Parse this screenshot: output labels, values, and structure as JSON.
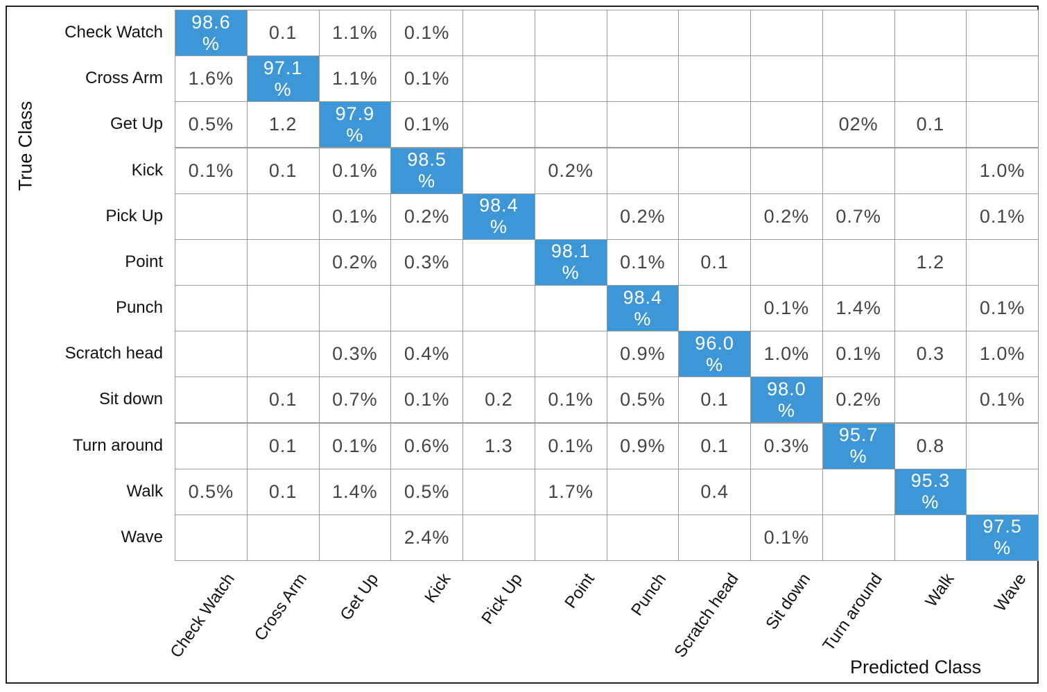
{
  "matrix": {
    "y_label": "True Class",
    "x_label": "Predicted Class",
    "highlight_color": "#3d97d6",
    "rows": [
      "Check Watch",
      "Cross Arm",
      "Get Up",
      "Kick",
      "Pick Up",
      "Point",
      "Punch",
      "Scratch head",
      "Sit down",
      "Turn around",
      "Walk",
      "Wave"
    ],
    "columns": [
      "Check Watch",
      "Cross Arm",
      "Get Up",
      "Kick",
      "Pick Up",
      "Point",
      "Punch",
      "Scratch head",
      "Sit down",
      "Turn around",
      "Walk",
      "Wave"
    ],
    "cells": [
      [
        "98.6 %",
        "0.1",
        "1.1%",
        "0.1%",
        null,
        null,
        null,
        null,
        null,
        null,
        null,
        null
      ],
      [
        "1.6%",
        "97.1 %",
        "1.1%",
        "0.1%",
        null,
        null,
        null,
        null,
        null,
        null,
        null,
        null
      ],
      [
        "0.5%",
        "1.2",
        "97.9 %",
        "0.1%",
        null,
        null,
        null,
        null,
        null,
        "02%",
        "0.1",
        null
      ],
      [
        "0.1%",
        "0.1",
        "0.1%",
        "98.5 %",
        null,
        "0.2%",
        null,
        null,
        null,
        null,
        null,
        "1.0%"
      ],
      [
        null,
        null,
        "0.1%",
        "0.2%",
        "98.4 %",
        null,
        "0.2%",
        null,
        "0.2%",
        "0.7%",
        null,
        "0.1%"
      ],
      [
        null,
        null,
        "0.2%",
        "0.3%",
        null,
        "98.1 %",
        "0.1%",
        "0.1",
        null,
        null,
        "1.2",
        null
      ],
      [
        null,
        null,
        null,
        null,
        null,
        null,
        "98.4 %",
        null,
        "0.1%",
        "1.4%",
        null,
        "0.1%"
      ],
      [
        null,
        null,
        "0.3%",
        "0.4%",
        null,
        null,
        "0.9%",
        "96.0 %",
        "1.0%",
        "0.1%",
        "0.3",
        "1.0%"
      ],
      [
        null,
        "0.1",
        "0.7%",
        "0.1%",
        "0.2",
        "0.1%",
        "0.5%",
        "0.1",
        "98.0 %",
        "0.2%",
        null,
        "0.1%"
      ],
      [
        null,
        "0.1",
        "0.1%",
        "0.6%",
        "1.3",
        "0.1%",
        "0.9%",
        "0.1",
        "0.3%",
        "95.7 %",
        "0.8",
        null
      ],
      [
        "0.5%",
        "0.1",
        "1.4%",
        "0.5%",
        null,
        "1.7%",
        null,
        "0.4",
        null,
        null,
        "95.3 %",
        null
      ],
      [
        null,
        null,
        null,
        "2.4%",
        null,
        null,
        null,
        null,
        "0.1%",
        null,
        null,
        "97.5 %"
      ]
    ]
  }
}
